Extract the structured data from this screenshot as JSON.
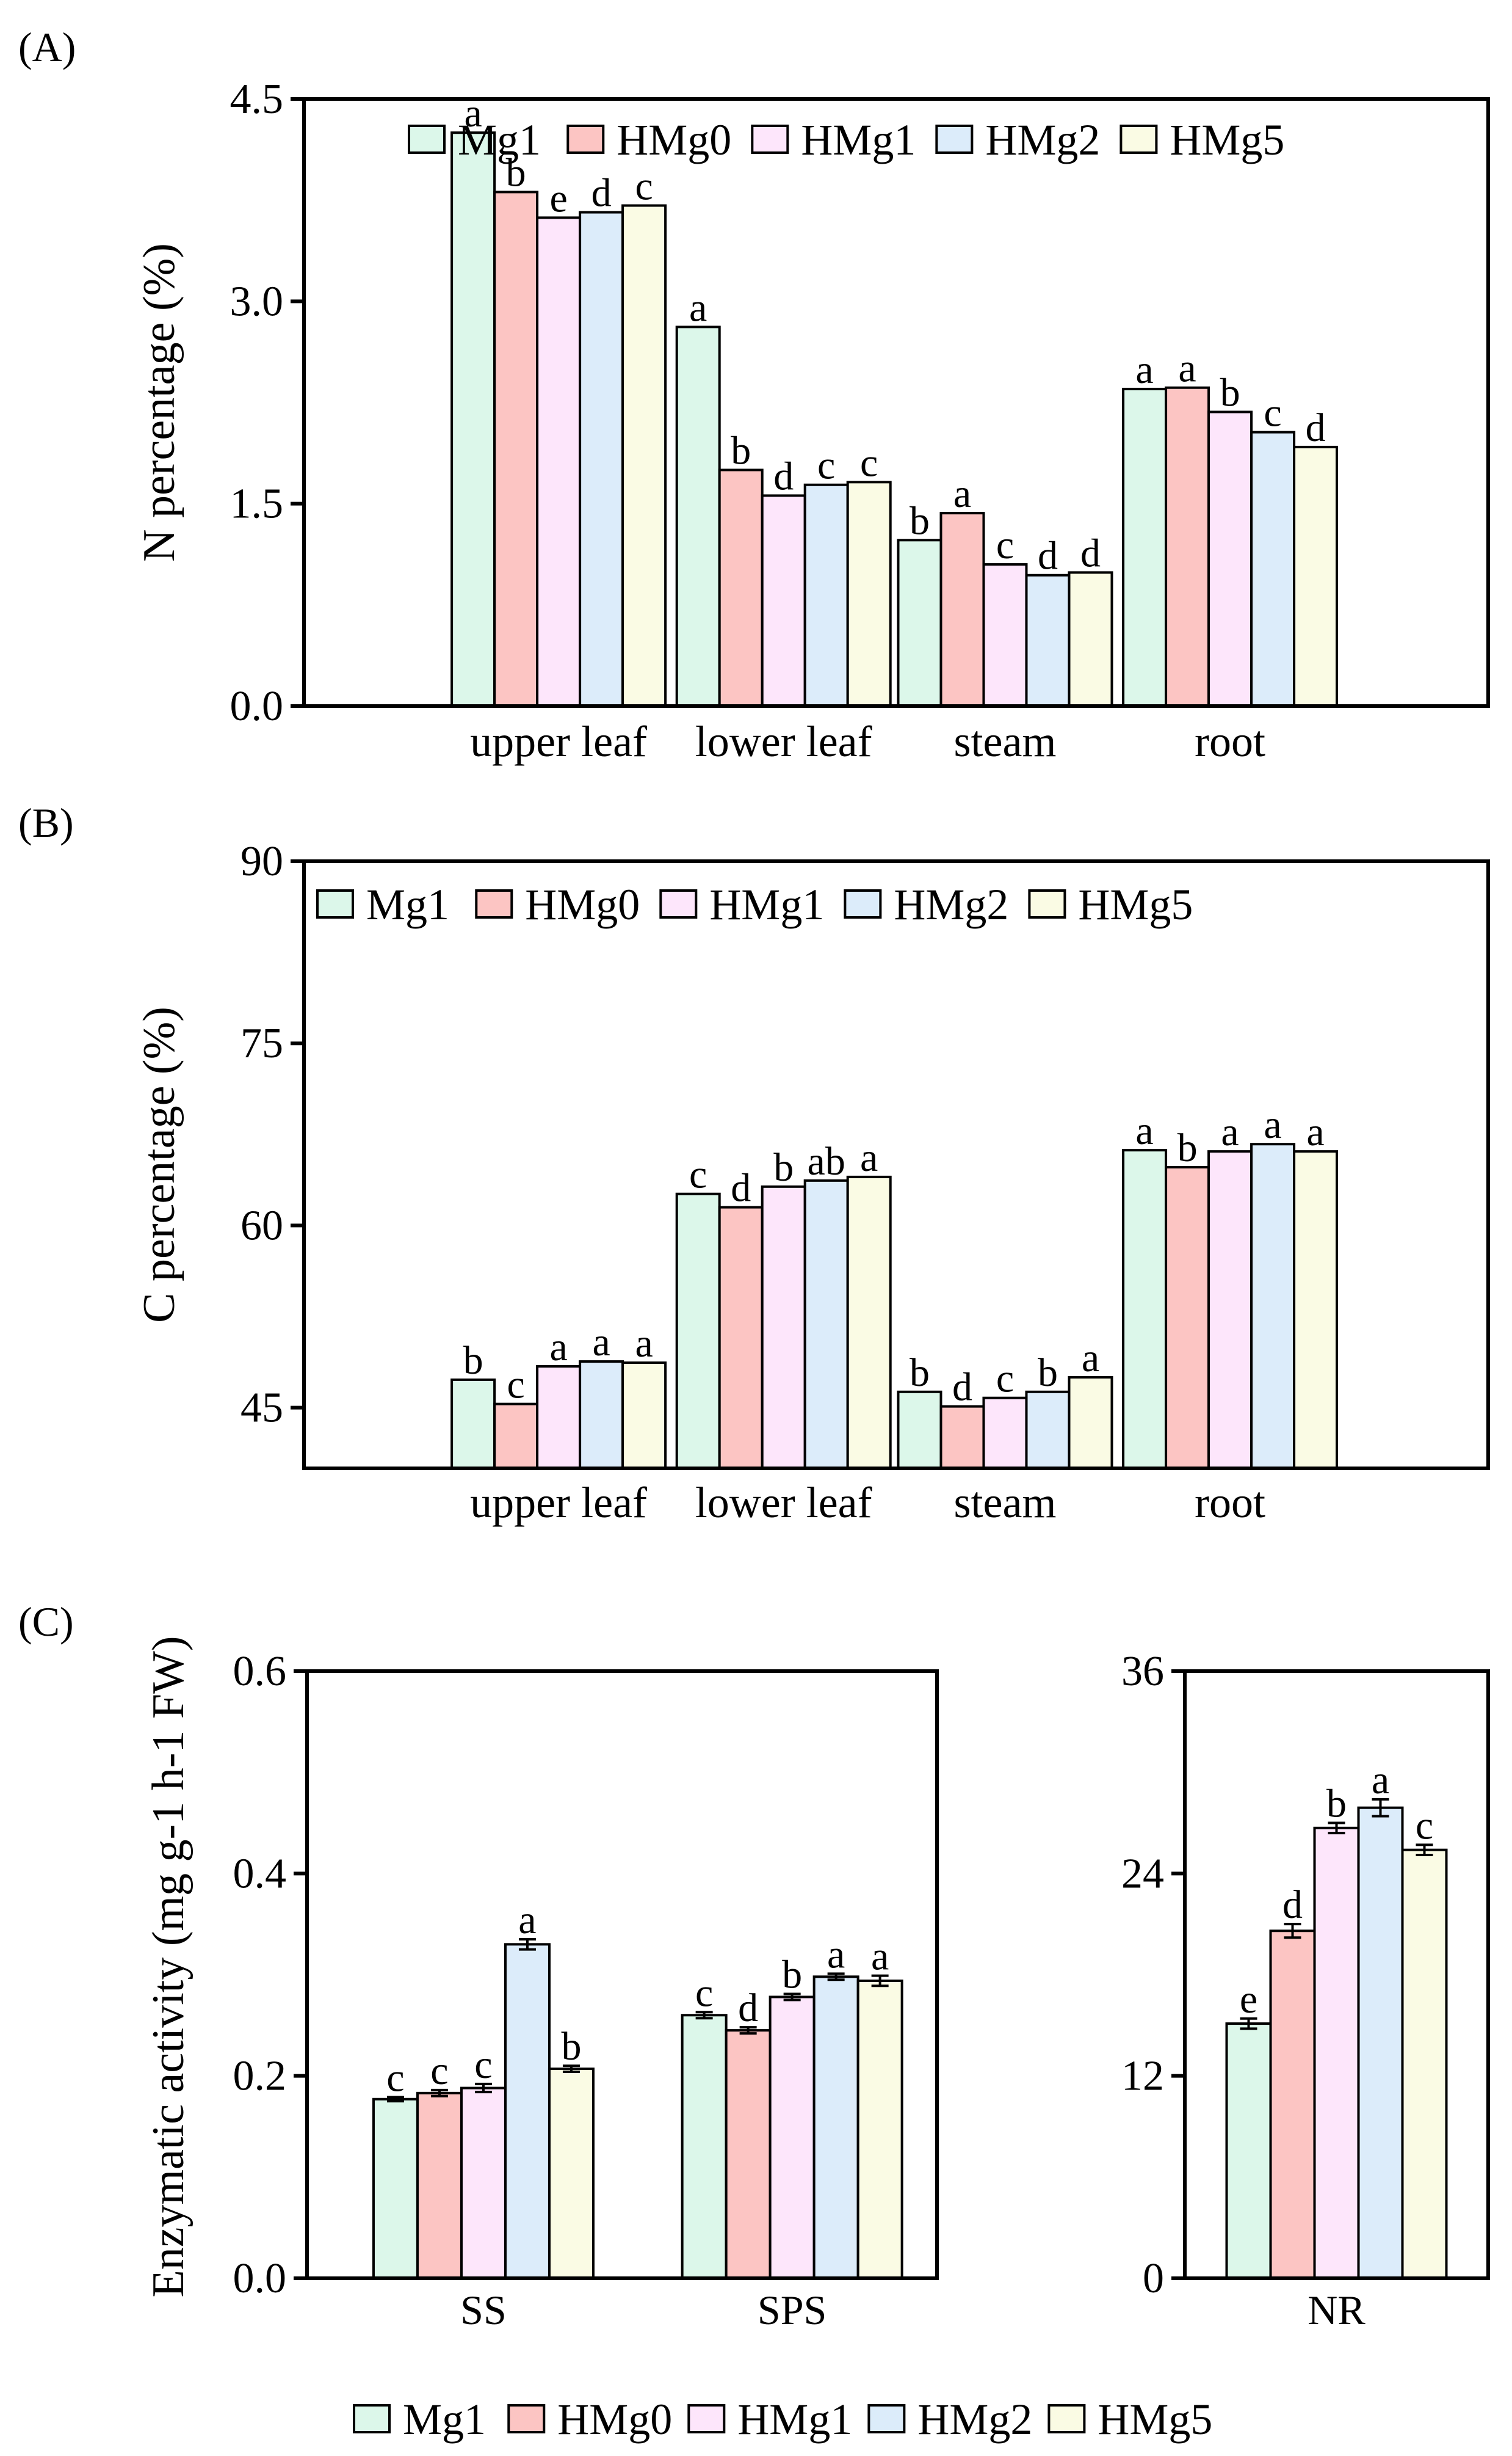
{
  "series_names": [
    "Mg1",
    "HMg0",
    "HMg1",
    "HMg2",
    "HMg5"
  ],
  "series_colors": [
    "#dcf7ea",
    "#fcc5c3",
    "#fde6fb",
    "#dcecfa",
    "#fafbe4"
  ],
  "chart_data": [
    {
      "id": "A",
      "panel_label": "(A)",
      "type": "bar",
      "title": "",
      "xlabel": "",
      "ylabel": "N percentage (%)",
      "ylim": [
        0,
        4.5
      ],
      "yticks": [
        0.0,
        1.5,
        3.0,
        4.5
      ],
      "ytick_labels": [
        "0.0",
        "1.5",
        "3.0",
        "4.5"
      ],
      "categories": [
        "upper leaf",
        "lower leaf",
        "steam",
        "root"
      ],
      "series": [
        {
          "name": "Mg1",
          "values": [
            4.25,
            2.81,
            1.23,
            2.35
          ],
          "letters": [
            "a",
            "a",
            "b",
            "a"
          ]
        },
        {
          "name": "HMg0",
          "values": [
            3.81,
            1.75,
            1.43,
            2.36
          ],
          "letters": [
            "b",
            "b",
            "a",
            "a"
          ]
        },
        {
          "name": "HMg1",
          "values": [
            3.62,
            1.56,
            1.05,
            2.18
          ],
          "letters": [
            "e",
            "d",
            "c",
            "b"
          ]
        },
        {
          "name": "HMg2",
          "values": [
            3.66,
            1.64,
            0.97,
            2.03
          ],
          "letters": [
            "d",
            "c",
            "d",
            "c"
          ]
        },
        {
          "name": "HMg5",
          "values": [
            3.71,
            1.66,
            0.99,
            1.92
          ],
          "letters": [
            "c",
            "c",
            "d",
            "d"
          ]
        }
      ],
      "legend": "top"
    },
    {
      "id": "B",
      "panel_label": "(B)",
      "type": "bar",
      "title": "",
      "xlabel": "",
      "ylabel": "C percentage (%)",
      "ylim": [
        40,
        90
      ],
      "yticks": [
        45,
        60,
        75,
        90
      ],
      "ytick_labels": [
        "45",
        "60",
        "75",
        "90"
      ],
      "categories": [
        "upper leaf",
        "lower leaf",
        "steam",
        "root"
      ],
      "series": [
        {
          "name": "Mg1",
          "values": [
            47.3,
            62.6,
            46.3,
            66.2
          ],
          "letters": [
            "b",
            "c",
            "b",
            "a"
          ]
        },
        {
          "name": "HMg0",
          "values": [
            45.3,
            61.5,
            45.1,
            64.8
          ],
          "letters": [
            "c",
            "d",
            "d",
            "b"
          ]
        },
        {
          "name": "HMg1",
          "values": [
            48.4,
            63.2,
            45.8,
            66.1
          ],
          "letters": [
            "a",
            "b",
            "c",
            "a"
          ]
        },
        {
          "name": "HMg2",
          "values": [
            48.8,
            63.7,
            46.3,
            66.7
          ],
          "letters": [
            "a",
            "ab",
            "b",
            "a"
          ]
        },
        {
          "name": "HMg5",
          "values": [
            48.7,
            64.0,
            47.5,
            66.1
          ],
          "letters": [
            "a",
            "a",
            "a",
            "a"
          ]
        }
      ],
      "legend": "top"
    },
    {
      "id": "C1",
      "panel_label": "(C)",
      "type": "bar",
      "title": "",
      "xlabel": "",
      "ylabel": "Enzymatic activity (mg g-1 h-1 FW)",
      "ylim": [
        0,
        0.6
      ],
      "yticks": [
        0.0,
        0.2,
        0.4,
        0.6
      ],
      "ytick_labels": [
        "0.0",
        "0.2",
        "0.4",
        "0.6"
      ],
      "categories": [
        "SS",
        "SPS"
      ],
      "series": [
        {
          "name": "Mg1",
          "values": [
            0.177,
            0.26
          ],
          "errors": [
            0.002,
            0.003
          ],
          "letters": [
            "c",
            "c"
          ]
        },
        {
          "name": "HMg0",
          "values": [
            0.183,
            0.245
          ],
          "errors": [
            0.003,
            0.003
          ],
          "letters": [
            "c",
            "d"
          ]
        },
        {
          "name": "HMg1",
          "values": [
            0.188,
            0.278
          ],
          "errors": [
            0.004,
            0.003
          ],
          "letters": [
            "c",
            "b"
          ]
        },
        {
          "name": "HMg2",
          "values": [
            0.33,
            0.298
          ],
          "errors": [
            0.005,
            0.003
          ],
          "letters": [
            "a",
            "a"
          ]
        },
        {
          "name": "HMg5",
          "values": [
            0.207,
            0.294
          ],
          "errors": [
            0.003,
            0.005
          ],
          "letters": [
            "b",
            "a"
          ]
        }
      ],
      "legend": "bottom"
    },
    {
      "id": "C2",
      "panel_label": "",
      "type": "bar",
      "title": "",
      "xlabel": "",
      "ylabel": "",
      "ylim": [
        0,
        36
      ],
      "yticks": [
        0,
        12,
        24,
        36
      ],
      "ytick_labels": [
        "0",
        "12",
        "24",
        "36"
      ],
      "categories": [
        "NR"
      ],
      "series": [
        {
          "name": "Mg1",
          "values": [
            15.1
          ],
          "errors": [
            0.3
          ],
          "letters": [
            "e"
          ]
        },
        {
          "name": "HMg0",
          "values": [
            20.6
          ],
          "errors": [
            0.4
          ],
          "letters": [
            "d"
          ]
        },
        {
          "name": "HMg1",
          "values": [
            26.7
          ],
          "errors": [
            0.3
          ],
          "letters": [
            "b"
          ]
        },
        {
          "name": "HMg2",
          "values": [
            27.9
          ],
          "errors": [
            0.5
          ],
          "letters": [
            "a"
          ]
        },
        {
          "name": "HMg5",
          "values": [
            25.4
          ],
          "errors": [
            0.3
          ],
          "letters": [
            "c"
          ]
        }
      ],
      "legend": "bottom"
    }
  ]
}
